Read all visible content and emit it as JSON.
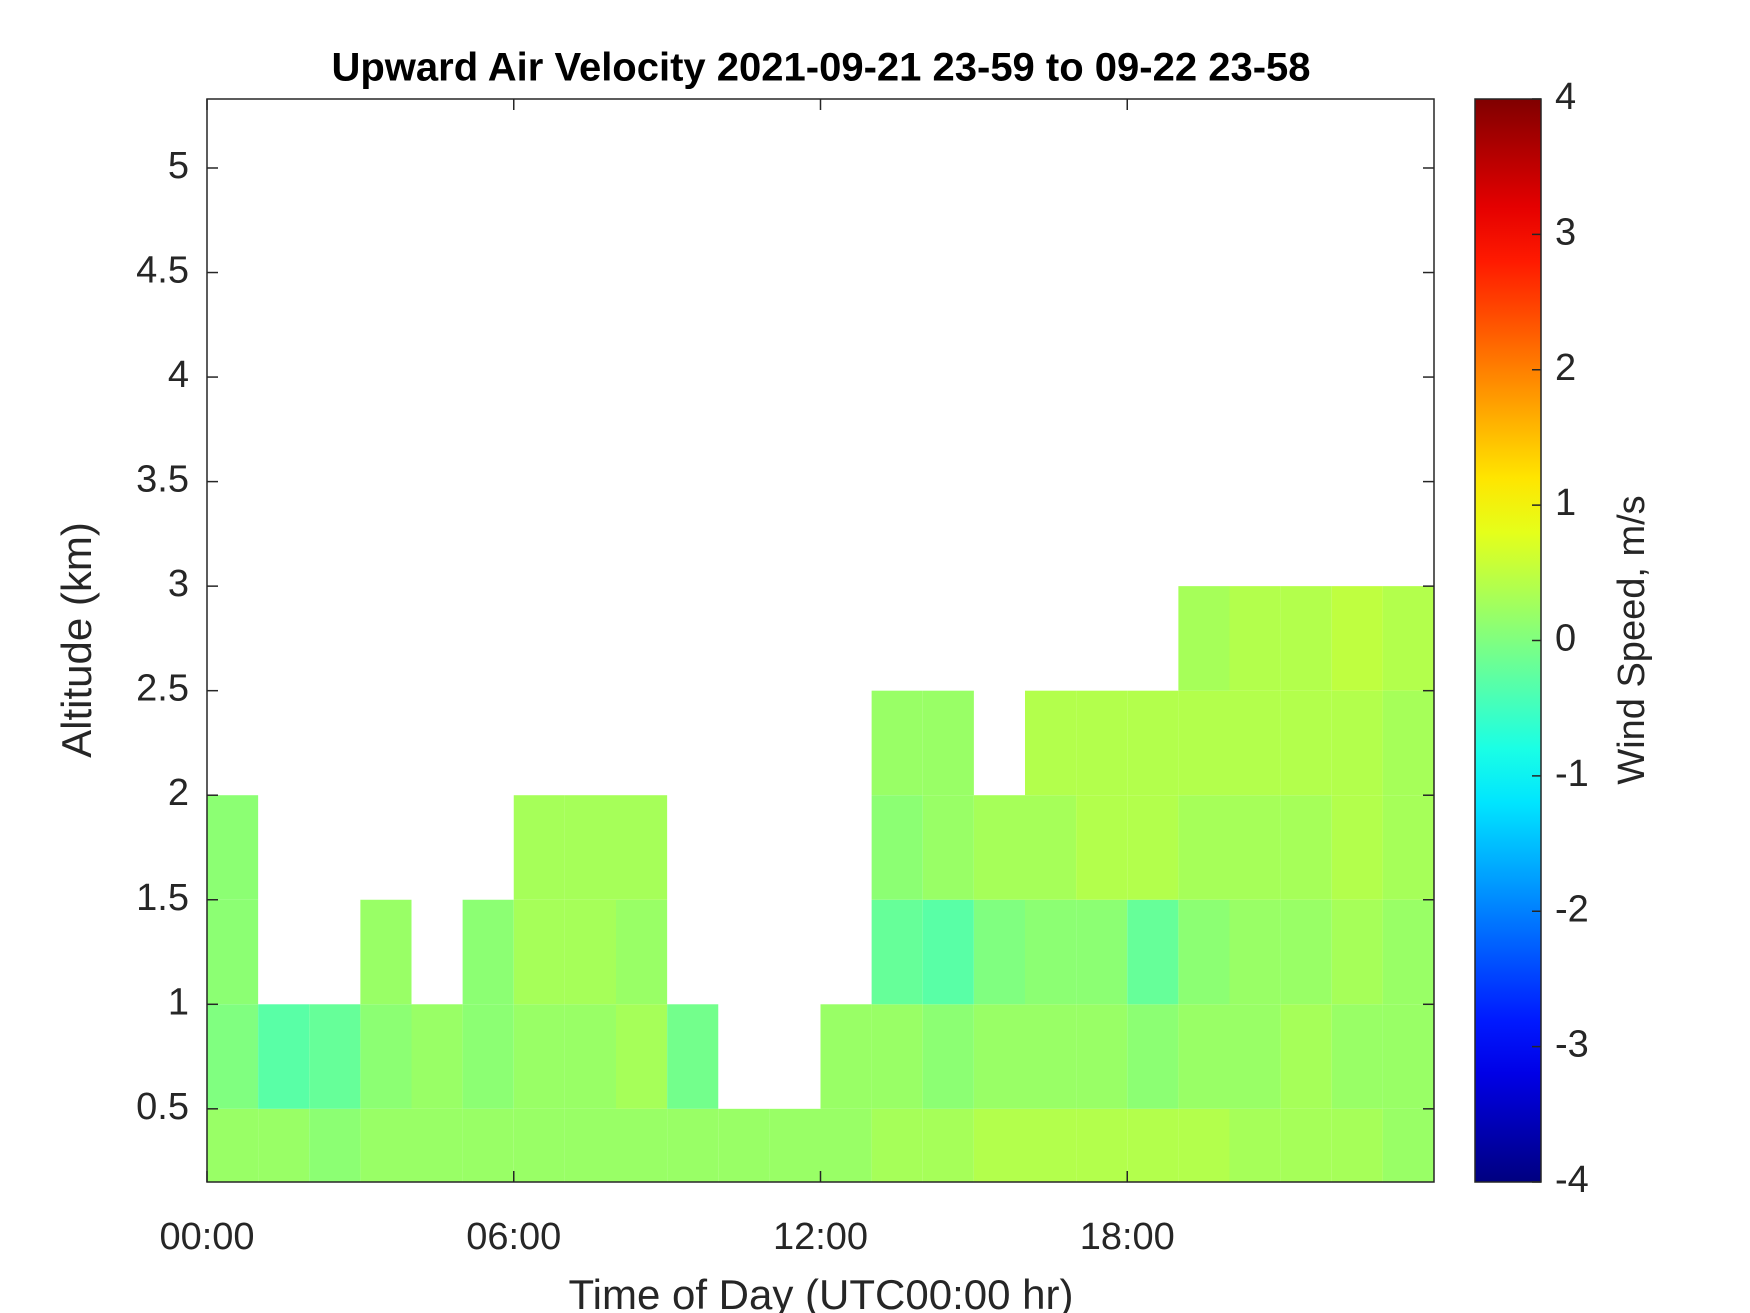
{
  "chart_data": {
    "type": "heatmap",
    "title": "Upward Air Velocity 2021-09-21 23-59 to 09-22 23-58",
    "x_label": "Time of Day (UTC00:00 hr)",
    "y_label": "Altitude (km)",
    "colorbar_label": "Wind Speed, m/s",
    "colormap": "jet",
    "x": [
      0,
      1,
      2,
      3,
      4,
      5,
      6,
      7,
      8,
      9,
      10,
      11,
      12,
      13,
      14,
      15,
      16,
      17,
      18,
      19,
      20,
      21,
      22,
      23,
      24
    ],
    "y": [
      0.15,
      0.5,
      1.0,
      1.5,
      2.0,
      2.5,
      3.0
    ],
    "z": [
      [
        0.2,
        0.2,
        0.1,
        0.2,
        0.2,
        0.2,
        0.2,
        0.2,
        0.2,
        0.2,
        0.2,
        0.2,
        0.2,
        0.3,
        0.3,
        0.4,
        0.4,
        0.4,
        0.4,
        0.4,
        0.3,
        0.3,
        0.3,
        0.2
      ],
      [
        0,
        -0.3,
        -0.2,
        0.1,
        0.2,
        0.1,
        0.2,
        0.2,
        0.3,
        -0.1,
        null,
        null,
        0.2,
        0.2,
        0.1,
        0.2,
        0.2,
        0.2,
        0.1,
        0.2,
        0.2,
        0.3,
        0.2,
        0.2
      ],
      [
        0.1,
        null,
        null,
        0.2,
        null,
        0.1,
        0.3,
        0.3,
        0.2,
        null,
        null,
        null,
        null,
        -0.2,
        -0.3,
        0,
        0.1,
        0.1,
        -0.2,
        0.1,
        0.2,
        0.2,
        0.3,
        0.2
      ],
      [
        0.1,
        null,
        null,
        null,
        null,
        null,
        0.3,
        0.3,
        0.3,
        null,
        null,
        null,
        null,
        0.1,
        0.2,
        0.3,
        0.3,
        0.4,
        0.4,
        0.3,
        0.3,
        0.3,
        0.4,
        0.3
      ],
      [
        null,
        null,
        null,
        null,
        null,
        null,
        null,
        null,
        null,
        null,
        null,
        null,
        null,
        0.2,
        0.2,
        null,
        0.4,
        0.4,
        0.4,
        0.4,
        0.4,
        0.4,
        0.4,
        0.3
      ],
      [
        null,
        null,
        null,
        null,
        null,
        null,
        null,
        null,
        null,
        null,
        null,
        null,
        null,
        null,
        null,
        null,
        null,
        null,
        null,
        0.3,
        0.4,
        0.4,
        0.5,
        0.4
      ]
    ],
    "xlim": [
      0,
      24
    ],
    "xticks": [
      {
        "value": 0,
        "label": "00:00"
      },
      {
        "value": 6,
        "label": "06:00"
      },
      {
        "value": 12,
        "label": "12:00"
      },
      {
        "value": 18,
        "label": "18:00"
      }
    ],
    "ylim": [
      0.15,
      5.33
    ],
    "yticks": [
      0.5,
      1,
      1.5,
      2,
      2.5,
      3,
      3.5,
      4,
      4.5,
      5
    ],
    "clim": [
      -4,
      4
    ],
    "cticks": [
      -4,
      -3,
      -2,
      -1,
      0,
      1,
      2,
      3,
      4
    ]
  }
}
